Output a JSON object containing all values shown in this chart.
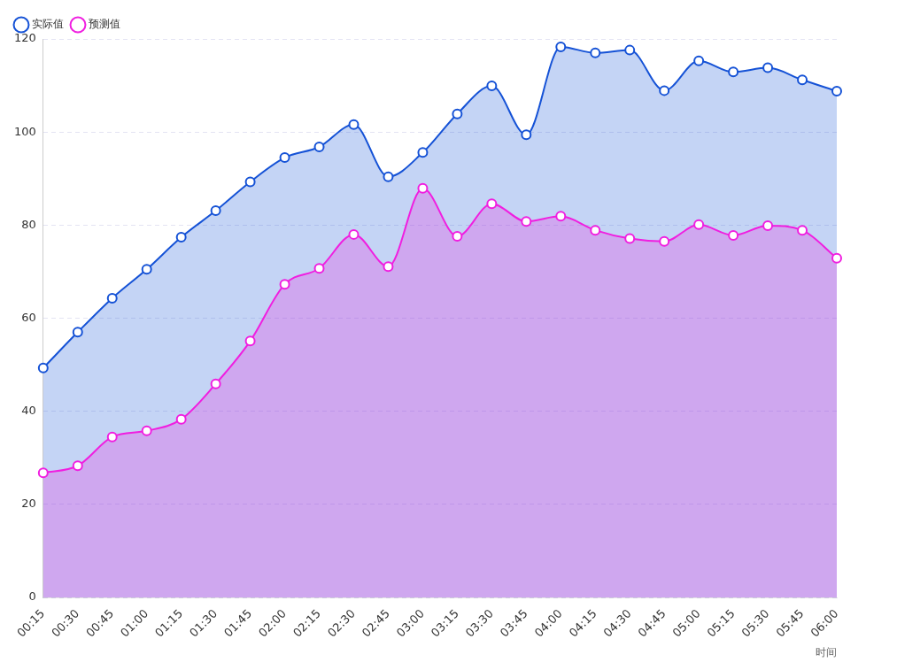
{
  "chart_data": {
    "type": "area",
    "xlabel": "时间",
    "categories": [
      "00:15",
      "00:30",
      "00:45",
      "01:00",
      "01:15",
      "01:30",
      "01:45",
      "02:00",
      "02:15",
      "02:30",
      "02:45",
      "03:00",
      "03:15",
      "03:30",
      "03:45",
      "04:00",
      "04:15",
      "04:30",
      "04:45",
      "05:00",
      "05:15",
      "05:30",
      "05:45",
      "06:00"
    ],
    "series": [
      {
        "name": "实际值",
        "color": "#1552d6",
        "values": [
          49.3,
          57.0,
          64.3,
          70.5,
          77.4,
          83.1,
          89.3,
          94.5,
          96.8,
          101.6,
          90.4,
          95.6,
          103.9,
          109.9,
          99.4,
          118.3,
          117.0,
          117.6,
          108.9,
          115.3,
          112.9,
          113.8,
          111.2,
          108.8
        ]
      },
      {
        "name": "预测值",
        "color": "#f01ee0",
        "values": [
          26.8,
          28.3,
          34.5,
          35.8,
          38.3,
          45.9,
          55.1,
          67.3,
          70.7,
          78.0,
          71.1,
          87.9,
          77.6,
          84.6,
          80.8,
          81.9,
          78.9,
          77.1,
          76.5,
          80.1,
          77.8,
          79.9,
          78.9,
          72.9
        ]
      }
    ],
    "ylim": [
      0,
      120
    ],
    "yticks": [
      0,
      20,
      40,
      60,
      80,
      100,
      120
    ],
    "grid": "y",
    "legend": "top left",
    "marker": "circle",
    "line_style": "solid"
  }
}
